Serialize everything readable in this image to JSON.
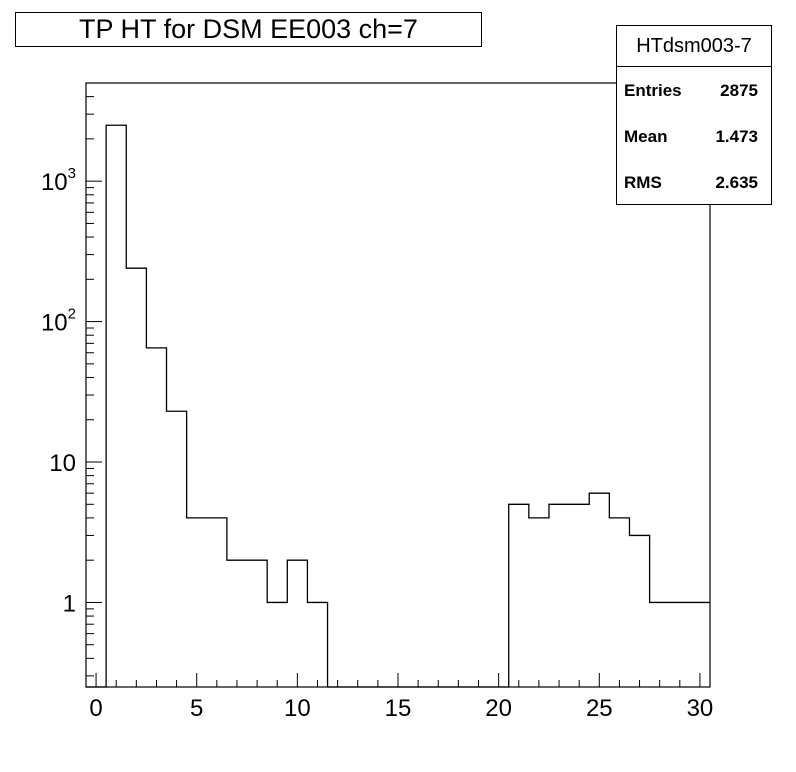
{
  "chart_data": {
    "type": "bar",
    "style": "step-histogram",
    "title": "TP HT for DSM EE003 ch=7",
    "xlabel": "",
    "ylabel": "",
    "xlim": [
      -0.5,
      30.5
    ],
    "ylim": [
      0.25,
      5000
    ],
    "y_scale": "log",
    "grid": false,
    "x_ticks": [
      0,
      5,
      10,
      15,
      20,
      25,
      30
    ],
    "y_ticks": [
      {
        "value": 1,
        "label": "1"
      },
      {
        "value": 10,
        "label": "10"
      },
      {
        "value": 100,
        "base": "10",
        "exp": "2"
      },
      {
        "value": 1000,
        "base": "10",
        "exp": "3"
      }
    ],
    "bins": [
      {
        "x": 0,
        "value": 0
      },
      {
        "x": 1,
        "value": 2500
      },
      {
        "x": 2,
        "value": 240
      },
      {
        "x": 3,
        "value": 65
      },
      {
        "x": 4,
        "value": 23
      },
      {
        "x": 5,
        "value": 4
      },
      {
        "x": 6,
        "value": 4
      },
      {
        "x": 7,
        "value": 2
      },
      {
        "x": 8,
        "value": 2
      },
      {
        "x": 9,
        "value": 1
      },
      {
        "x": 10,
        "value": 2
      },
      {
        "x": 11,
        "value": 1
      },
      {
        "x": 12,
        "value": 0
      },
      {
        "x": 13,
        "value": 0
      },
      {
        "x": 14,
        "value": 0
      },
      {
        "x": 15,
        "value": 0
      },
      {
        "x": 16,
        "value": 0
      },
      {
        "x": 17,
        "value": 0
      },
      {
        "x": 18,
        "value": 0
      },
      {
        "x": 19,
        "value": 0
      },
      {
        "x": 20,
        "value": 0
      },
      {
        "x": 21,
        "value": 5
      },
      {
        "x": 22,
        "value": 4
      },
      {
        "x": 23,
        "value": 5
      },
      {
        "x": 24,
        "value": 5
      },
      {
        "x": 25,
        "value": 6
      },
      {
        "x": 26,
        "value": 4
      },
      {
        "x": 27,
        "value": 3
      },
      {
        "x": 28,
        "value": 1
      },
      {
        "x": 29,
        "value": 1
      },
      {
        "x": 30,
        "value": 1
      }
    ],
    "stats": {
      "name": "HTdsm003-7",
      "rows": [
        {
          "label": "Entries",
          "value": "2875"
        },
        {
          "label": "Mean",
          "value": "1.473"
        },
        {
          "label": "RMS",
          "value": "2.635"
        }
      ],
      "placement": "top-right"
    }
  }
}
